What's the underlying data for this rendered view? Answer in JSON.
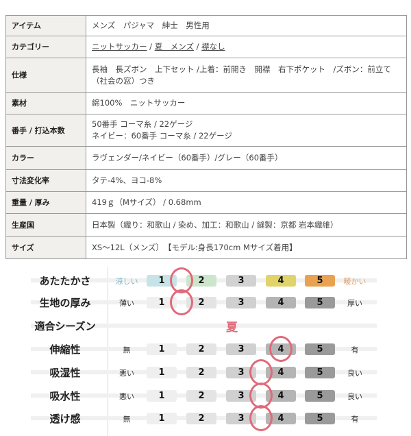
{
  "spec": [
    {
      "label": "アイテム",
      "value": "メンズ　パジャマ　紳士　男性用"
    },
    {
      "label": "カテゴリー",
      "links": [
        "ニットサッカー",
        "夏　メンズ",
        "襟なし"
      ],
      "sep": " / "
    },
    {
      "label": "仕様",
      "value": "長袖　長ズボン　上下セット /上着：前開き　開襟　右下ポケット　/ズボン：前立て（社会の窓）つき"
    },
    {
      "label": "素材",
      "value": "綿100%　ニットサッカー"
    },
    {
      "label": "番手 / 打込本数",
      "lines": [
        "50番手 コーマ糸 / 22ゲージ",
        "ネイビー：60番手 コーマ糸 / 22ゲージ"
      ]
    },
    {
      "label": "カラー",
      "value": "ラヴェンダー/ネイビー（60番手）/グレー（60番手）"
    },
    {
      "label": "寸法変化率",
      "value": "タテ-4%、ヨコ-8%"
    },
    {
      "label": "重量 / 厚み",
      "value": "419ｇ（Mサイズ） / 0.68mm"
    },
    {
      "label": "生産国",
      "value": "日本製（織り：和歌山 / 染め、加工：和歌山 / 縫製：京都 岩本織維）"
    },
    {
      "label": "サイズ",
      "value": "XS～12L（メンズ）　【モデル:身長170cm Mサイズ着用】"
    }
  ],
  "ratings": [
    {
      "label": "あたたかさ",
      "left": "涼しい",
      "right": "暖かい",
      "marker": 1.5,
      "colors": [
        "#c6e4e8",
        "#cbe6cb",
        "#d2d2d2",
        "#e0d36a",
        "#e9a152"
      ],
      "leftColor": "#7fb8c4",
      "rightColor": "#e2a066"
    },
    {
      "label": "生地の厚み",
      "left": "薄い",
      "right": "厚い",
      "marker": 1.5
    },
    {
      "label": "伸縮性",
      "left": "無",
      "right": "有",
      "marker": 4
    },
    {
      "label": "吸湿性",
      "left": "悪い",
      "right": "良い",
      "marker": 3.5
    },
    {
      "label": "吸水性",
      "left": "悪い",
      "right": "良い",
      "marker": 3.5
    },
    {
      "label": "透け感",
      "left": "無",
      "right": "有",
      "marker": 3.5
    }
  ],
  "season": {
    "label": "適合シーズン",
    "value": "夏"
  },
  "scale": [
    "1",
    "2",
    "3",
    "4",
    "5"
  ],
  "grayColors": [
    "#efefef",
    "#e4e4e4",
    "#d0d0d0",
    "#b4b4b4",
    "#9a9a9a"
  ]
}
